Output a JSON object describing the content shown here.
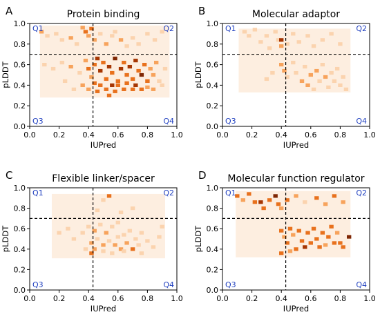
{
  "colors": {
    "bg": "#fdeee0",
    "light": "#fbd3ae",
    "mid": "#f7a35c",
    "strong": "#e8711d",
    "dark": "#a63603",
    "darkest": "#7f2704",
    "quad_label": "#1f3fbf"
  },
  "chart_data": [
    {
      "type": "heatmap",
      "panel": "A",
      "title": "Protein binding",
      "xlabel": "IUPred",
      "ylabel": "pLDDT",
      "xlim": [
        0,
        1
      ],
      "ylim": [
        0,
        1
      ],
      "xticks": [
        "0.0",
        "0.2",
        "0.4",
        "0.6",
        "0.8",
        "1.0"
      ],
      "yticks": [
        "0.0",
        "0.2",
        "0.4",
        "0.6",
        "0.8",
        "1.0"
      ],
      "thresholds": {
        "x": 0.43,
        "y": 0.7
      },
      "quadrants": [
        "Q1",
        "Q2",
        "Q3",
        "Q4"
      ],
      "background_region": {
        "x": [
          0.07,
          0.95
        ],
        "y": [
          0.28,
          0.98
        ]
      },
      "cells_note": "level 1=light .. 5=darkest",
      "cells": [
        [
          0.08,
          0.92,
          2
        ],
        [
          0.12,
          0.88,
          1
        ],
        [
          0.18,
          0.9,
          1
        ],
        [
          0.22,
          0.84,
          1
        ],
        [
          0.28,
          0.86,
          2
        ],
        [
          0.32,
          0.8,
          1
        ],
        [
          0.36,
          0.96,
          2
        ],
        [
          0.38,
          0.92,
          3
        ],
        [
          0.4,
          0.88,
          2
        ],
        [
          0.42,
          0.95,
          3
        ],
        [
          0.44,
          0.84,
          2
        ],
        [
          0.48,
          0.9,
          1
        ],
        [
          0.52,
          0.8,
          2
        ],
        [
          0.56,
          0.88,
          1
        ],
        [
          0.58,
          0.92,
          1
        ],
        [
          0.62,
          0.84,
          2
        ],
        [
          0.66,
          0.78,
          1
        ],
        [
          0.7,
          0.86,
          1
        ],
        [
          0.74,
          0.8,
          1
        ],
        [
          0.8,
          0.9,
          1
        ],
        [
          0.85,
          0.84,
          1
        ],
        [
          0.9,
          0.92,
          1
        ],
        [
          0.1,
          0.6,
          1
        ],
        [
          0.16,
          0.56,
          1
        ],
        [
          0.22,
          0.62,
          1
        ],
        [
          0.28,
          0.58,
          2
        ],
        [
          0.34,
          0.52,
          1
        ],
        [
          0.38,
          0.64,
          2
        ],
        [
          0.4,
          0.56,
          3
        ],
        [
          0.42,
          0.48,
          2
        ],
        [
          0.44,
          0.6,
          3
        ],
        [
          0.46,
          0.66,
          4
        ],
        [
          0.48,
          0.54,
          4
        ],
        [
          0.5,
          0.62,
          3
        ],
        [
          0.52,
          0.46,
          3
        ],
        [
          0.54,
          0.58,
          4
        ],
        [
          0.56,
          0.52,
          3
        ],
        [
          0.58,
          0.66,
          5
        ],
        [
          0.6,
          0.44,
          3
        ],
        [
          0.62,
          0.56,
          4
        ],
        [
          0.64,
          0.62,
          3
        ],
        [
          0.66,
          0.5,
          3
        ],
        [
          0.68,
          0.58,
          4
        ],
        [
          0.7,
          0.46,
          3
        ],
        [
          0.72,
          0.64,
          4
        ],
        [
          0.74,
          0.54,
          3
        ],
        [
          0.76,
          0.5,
          5
        ],
        [
          0.78,
          0.6,
          3
        ],
        [
          0.8,
          0.44,
          3
        ],
        [
          0.82,
          0.56,
          2
        ],
        [
          0.84,
          0.5,
          2
        ],
        [
          0.86,
          0.62,
          2
        ],
        [
          0.88,
          0.44,
          1
        ],
        [
          0.92,
          0.56,
          1
        ],
        [
          0.36,
          0.4,
          2
        ],
        [
          0.4,
          0.36,
          2
        ],
        [
          0.44,
          0.42,
          3
        ],
        [
          0.46,
          0.34,
          3
        ],
        [
          0.48,
          0.4,
          3
        ],
        [
          0.52,
          0.36,
          3
        ],
        [
          0.54,
          0.3,
          3
        ],
        [
          0.56,
          0.4,
          4
        ],
        [
          0.58,
          0.34,
          3
        ],
        [
          0.6,
          0.4,
          3
        ],
        [
          0.64,
          0.36,
          3
        ],
        [
          0.66,
          0.42,
          3
        ],
        [
          0.7,
          0.36,
          3
        ],
        [
          0.72,
          0.4,
          4
        ],
        [
          0.76,
          0.36,
          3
        ],
        [
          0.8,
          0.38,
          2
        ],
        [
          0.84,
          0.36,
          2
        ],
        [
          0.3,
          0.36,
          1
        ],
        [
          0.24,
          0.44,
          1
        ],
        [
          0.9,
          0.4,
          1
        ]
      ]
    },
    {
      "type": "heatmap",
      "panel": "B",
      "title": "Molecular adaptor",
      "xlabel": "IUPred",
      "ylabel": "pLDDT",
      "xlim": [
        0,
        1
      ],
      "ylim": [
        0,
        1
      ],
      "xticks": [
        "0.0",
        "0.2",
        "0.4",
        "0.6",
        "0.8",
        "1.0"
      ],
      "yticks": [
        "0.0",
        "0.2",
        "0.4",
        "0.6",
        "0.8",
        "1.0"
      ],
      "thresholds": {
        "x": 0.43,
        "y": 0.7
      },
      "quadrants": [
        "Q1",
        "Q2",
        "Q3",
        "Q4"
      ],
      "background_region": {
        "x": [
          0.11,
          0.87
        ],
        "y": [
          0.33,
          0.95
        ]
      },
      "cells": [
        [
          0.15,
          0.92,
          1
        ],
        [
          0.18,
          0.88,
          1
        ],
        [
          0.22,
          0.94,
          1
        ],
        [
          0.26,
          0.82,
          1
        ],
        [
          0.3,
          0.88,
          1
        ],
        [
          0.32,
          0.76,
          1
        ],
        [
          0.36,
          0.92,
          1
        ],
        [
          0.38,
          0.84,
          1
        ],
        [
          0.4,
          0.84,
          4
        ],
        [
          0.4,
          0.78,
          2
        ],
        [
          0.44,
          0.8,
          1
        ],
        [
          0.48,
          0.9,
          1
        ],
        [
          0.52,
          0.82,
          1
        ],
        [
          0.58,
          0.88,
          1
        ],
        [
          0.62,
          0.78,
          1
        ],
        [
          0.68,
          0.84,
          1
        ],
        [
          0.74,
          0.9,
          1
        ],
        [
          0.8,
          0.8,
          1
        ],
        [
          0.4,
          0.6,
          2
        ],
        [
          0.42,
          0.54,
          2
        ],
        [
          0.44,
          0.48,
          1
        ],
        [
          0.48,
          0.62,
          1
        ],
        [
          0.5,
          0.52,
          1
        ],
        [
          0.54,
          0.44,
          2
        ],
        [
          0.56,
          0.58,
          1
        ],
        [
          0.58,
          0.4,
          2
        ],
        [
          0.6,
          0.5,
          2
        ],
        [
          0.62,
          0.36,
          1
        ],
        [
          0.64,
          0.54,
          2
        ],
        [
          0.66,
          0.44,
          1
        ],
        [
          0.68,
          0.6,
          1
        ],
        [
          0.7,
          0.48,
          2
        ],
        [
          0.72,
          0.38,
          1
        ],
        [
          0.74,
          0.52,
          1
        ],
        [
          0.76,
          0.44,
          1
        ],
        [
          0.78,
          0.56,
          1
        ],
        [
          0.8,
          0.4,
          1
        ],
        [
          0.82,
          0.48,
          1
        ],
        [
          0.84,
          0.36,
          1
        ],
        [
          0.3,
          0.46,
          1
        ],
        [
          0.34,
          0.52,
          1
        ]
      ]
    },
    {
      "type": "heatmap",
      "panel": "C",
      "title": "Flexible linker/spacer",
      "xlabel": "IUPred",
      "ylabel": "pLDDT",
      "xlim": [
        0,
        1
      ],
      "ylim": [
        0,
        1
      ],
      "xticks": [
        "0.0",
        "0.2",
        "0.4",
        "0.6",
        "0.8",
        "1.0"
      ],
      "yticks": [
        "0.0",
        "0.2",
        "0.4",
        "0.6",
        "0.8",
        "1.0"
      ],
      "thresholds": {
        "x": 0.43,
        "y": 0.7
      },
      "quadrants": [
        "Q1",
        "Q2",
        "Q3",
        "Q4"
      ],
      "background_region": {
        "x": [
          0.15,
          0.92
        ],
        "y": [
          0.31,
          0.94
        ]
      },
      "cells": [
        [
          0.54,
          0.92,
          3
        ],
        [
          0.5,
          0.88,
          1
        ],
        [
          0.46,
          0.78,
          1
        ],
        [
          0.62,
          0.76,
          1
        ],
        [
          0.7,
          0.8,
          1
        ],
        [
          0.2,
          0.56,
          1
        ],
        [
          0.26,
          0.6,
          1
        ],
        [
          0.3,
          0.5,
          1
        ],
        [
          0.36,
          0.56,
          1
        ],
        [
          0.4,
          0.62,
          1
        ],
        [
          0.42,
          0.46,
          2
        ],
        [
          0.44,
          0.58,
          2
        ],
        [
          0.46,
          0.5,
          1
        ],
        [
          0.48,
          0.64,
          1
        ],
        [
          0.5,
          0.44,
          2
        ],
        [
          0.52,
          0.56,
          2
        ],
        [
          0.54,
          0.48,
          1
        ],
        [
          0.56,
          0.62,
          1
        ],
        [
          0.58,
          0.44,
          2
        ],
        [
          0.6,
          0.52,
          1
        ],
        [
          0.62,
          0.4,
          2
        ],
        [
          0.64,
          0.54,
          1
        ],
        [
          0.66,
          0.46,
          2
        ],
        [
          0.68,
          0.58,
          1
        ],
        [
          0.7,
          0.4,
          3
        ],
        [
          0.72,
          0.5,
          1
        ],
        [
          0.74,
          0.44,
          1
        ],
        [
          0.76,
          0.56,
          1
        ],
        [
          0.8,
          0.48,
          1
        ],
        [
          0.84,
          0.42,
          1
        ],
        [
          0.88,
          0.52,
          1
        ],
        [
          0.9,
          0.62,
          1
        ],
        [
          0.42,
          0.36,
          3
        ],
        [
          0.44,
          0.4,
          2
        ],
        [
          0.38,
          0.4,
          1
        ],
        [
          0.5,
          0.38,
          1
        ],
        [
          0.56,
          0.36,
          1
        ],
        [
          0.64,
          0.38,
          1
        ],
        [
          0.76,
          0.36,
          1
        ],
        [
          0.6,
          0.66,
          1
        ]
      ]
    },
    {
      "type": "heatmap",
      "panel": "D",
      "title": "Molecular function regulator",
      "xlabel": "IUPred",
      "ylabel": "pLDDT",
      "xlim": [
        0,
        1
      ],
      "ylim": [
        0,
        1
      ],
      "xticks": [
        "0.0",
        "0.2",
        "0.4",
        "0.6",
        "0.8",
        "1.0"
      ],
      "yticks": [
        "0.0",
        "0.2",
        "0.4",
        "0.6",
        "0.8",
        "1.0"
      ],
      "thresholds": {
        "x": 0.43,
        "y": 0.7
      },
      "quadrants": [
        "Q1",
        "Q2",
        "Q3",
        "Q4"
      ],
      "background_region": {
        "x": [
          0.09,
          0.87
        ],
        "y": [
          0.32,
          0.97
        ]
      },
      "cells": [
        [
          0.1,
          0.92,
          3
        ],
        [
          0.14,
          0.88,
          2
        ],
        [
          0.18,
          0.94,
          3
        ],
        [
          0.22,
          0.86,
          3
        ],
        [
          0.26,
          0.86,
          4
        ],
        [
          0.28,
          0.8,
          3
        ],
        [
          0.32,
          0.88,
          3
        ],
        [
          0.36,
          0.92,
          5
        ],
        [
          0.38,
          0.84,
          3
        ],
        [
          0.4,
          0.8,
          2
        ],
        [
          0.44,
          0.88,
          3
        ],
        [
          0.5,
          0.92,
          2
        ],
        [
          0.56,
          0.86,
          1
        ],
        [
          0.64,
          0.9,
          3
        ],
        [
          0.7,
          0.84,
          2
        ],
        [
          0.76,
          0.92,
          3
        ],
        [
          0.82,
          0.86,
          2
        ],
        [
          0.4,
          0.58,
          3
        ],
        [
          0.42,
          0.52,
          2
        ],
        [
          0.44,
          0.46,
          3
        ],
        [
          0.46,
          0.6,
          3
        ],
        [
          0.48,
          0.54,
          2
        ],
        [
          0.5,
          0.4,
          3
        ],
        [
          0.52,
          0.58,
          3
        ],
        [
          0.54,
          0.48,
          3
        ],
        [
          0.56,
          0.42,
          4
        ],
        [
          0.58,
          0.56,
          3
        ],
        [
          0.6,
          0.46,
          3
        ],
        [
          0.62,
          0.6,
          3
        ],
        [
          0.64,
          0.5,
          3
        ],
        [
          0.66,
          0.42,
          3
        ],
        [
          0.68,
          0.56,
          3
        ],
        [
          0.7,
          0.44,
          2
        ],
        [
          0.72,
          0.52,
          3
        ],
        [
          0.74,
          0.62,
          3
        ],
        [
          0.76,
          0.46,
          3
        ],
        [
          0.78,
          0.56,
          2
        ],
        [
          0.8,
          0.46,
          3
        ],
        [
          0.82,
          0.42,
          3
        ],
        [
          0.86,
          0.52,
          5
        ],
        [
          0.4,
          0.36,
          3
        ],
        [
          0.46,
          0.38,
          2
        ]
      ]
    }
  ]
}
